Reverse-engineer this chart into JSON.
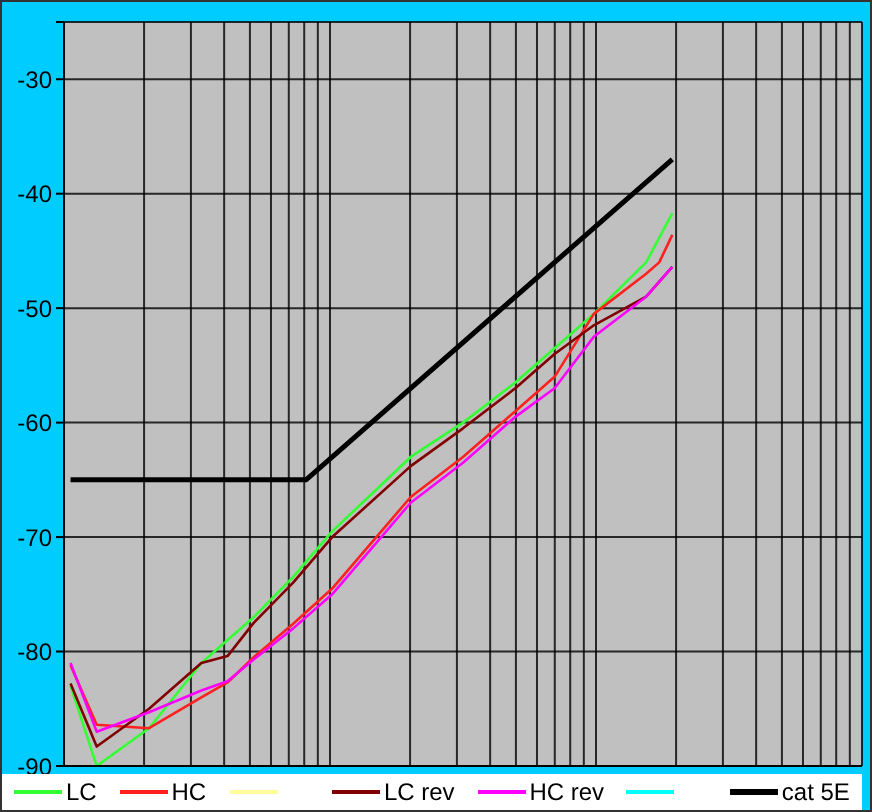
{
  "chart_data": {
    "type": "line",
    "grid": true,
    "legend": "bottom",
    "marker": "none",
    "line_style": "solid",
    "categories": [
      null,
      null,
      null,
      null,
      null,
      null,
      null,
      null,
      null,
      null,
      null,
      null,
      null,
      null,
      null,
      null,
      null,
      null,
      null,
      null,
      null,
      null,
      null,
      null,
      null,
      null,
      null,
      null,
      null,
      null,
      null,
      null,
      null,
      null,
      null,
      null,
      null,
      null,
      null,
      null,
      null,
      null,
      null,
      null,
      null,
      null,
      null,
      null,
      null,
      null,
      null,
      null,
      null,
      null,
      null,
      null,
      null,
      null,
      null,
      null,
      null
    ],
    "ylim": [
      -90,
      -25
    ],
    "yticks": [
      -90,
      -80,
      -70,
      -60,
      -50,
      -40,
      -30,
      {
        "value": -25,
        "label": null
      }
    ],
    "series": [
      {
        "name": "LC",
        "color": "#33ff33",
        "values": [
          -83,
          null,
          -90,
          null,
          null,
          null,
          -86.7,
          null,
          null,
          null,
          -81,
          null,
          -79,
          null,
          -77,
          null,
          null,
          -73.5,
          null,
          null,
          -69.5,
          null,
          null,
          null,
          null,
          null,
          -63,
          null,
          null,
          null,
          -60,
          null,
          null,
          null,
          -56.5,
          null,
          null,
          -53.5,
          null,
          null,
          -50.5,
          null,
          null,
          null,
          -46,
          null,
          -41.7,
          null,
          null,
          null,
          null,
          null,
          null,
          null,
          null,
          null,
          null,
          null,
          null,
          null,
          null
        ]
      },
      {
        "name": "HC",
        "color": "#ff2020",
        "values": [
          -81.2,
          null,
          -86.4,
          null,
          null,
          null,
          -86.7,
          null,
          null,
          null,
          -84,
          null,
          -82.7,
          null,
          -80.5,
          null,
          null,
          -77.6,
          null,
          null,
          -74.5,
          null,
          null,
          null,
          null,
          null,
          -66.5,
          null,
          null,
          null,
          -63,
          null,
          null,
          null,
          -59,
          null,
          null,
          -56,
          null,
          null,
          -50.5,
          null,
          null,
          null,
          -47,
          -46,
          -43.6,
          null,
          null,
          null,
          null,
          null,
          null,
          null,
          null,
          null,
          null,
          null,
          null,
          null,
          null
        ]
      },
      {
        "color": "#ffff99",
        "values": [
          null,
          null,
          null,
          null,
          null,
          null,
          null,
          null,
          null,
          null,
          null,
          null,
          null,
          null,
          null,
          null,
          null,
          null,
          null,
          null,
          null,
          null,
          null,
          null,
          null,
          null,
          null,
          null,
          null,
          null,
          null,
          null,
          null,
          null,
          null,
          null,
          null,
          null,
          null,
          null,
          null,
          null,
          null,
          null,
          null,
          null,
          null,
          null,
          null,
          null,
          null,
          null,
          null,
          null,
          null,
          null,
          null,
          null,
          null,
          null,
          null
        ]
      },
      {
        "name": "LC rev",
        "color": "#800000",
        "values": [
          -82.8,
          null,
          -88.3,
          null,
          null,
          null,
          -85,
          null,
          null,
          null,
          -81,
          null,
          -80.4,
          null,
          -77.5,
          null,
          null,
          -74,
          null,
          null,
          -70,
          null,
          null,
          null,
          null,
          null,
          -63.8,
          null,
          null,
          null,
          -60.5,
          null,
          null,
          null,
          -57,
          null,
          null,
          -54,
          null,
          null,
          -51.5,
          null,
          null,
          null,
          -49,
          null,
          -46.4,
          null,
          null,
          null,
          null,
          null,
          null,
          null,
          null,
          null,
          null,
          null,
          null,
          null,
          null
        ]
      },
      {
        "name": "HC rev",
        "color": "#ff00ff",
        "values": [
          -81,
          null,
          -87,
          null,
          null,
          null,
          -85.3,
          null,
          null,
          null,
          -83.4,
          null,
          -82.6,
          null,
          -80.7,
          null,
          null,
          -78,
          null,
          null,
          -75,
          null,
          null,
          null,
          null,
          null,
          -67,
          null,
          null,
          null,
          -63.5,
          null,
          null,
          null,
          -59.5,
          null,
          null,
          -57,
          null,
          null,
          -52.5,
          null,
          null,
          null,
          -49,
          null,
          -46.4,
          null,
          null,
          null,
          null,
          null,
          null,
          null,
          null,
          null,
          null,
          null,
          null,
          null,
          null
        ]
      },
      {
        "color": "#00ffff",
        "values": [
          null,
          null,
          null,
          null,
          null,
          null,
          null,
          null,
          null,
          null,
          null,
          null,
          null,
          null,
          null,
          null,
          null,
          null,
          null,
          null,
          null,
          null,
          null,
          null,
          null,
          null,
          null,
          null,
          null,
          null,
          null,
          null,
          null,
          null,
          null,
          null,
          null,
          null,
          null,
          null,
          null,
          null,
          null,
          null,
          null,
          null,
          null,
          null,
          null,
          null,
          null,
          null,
          null,
          null,
          null,
          null,
          null,
          null,
          null,
          null,
          null
        ]
      },
      {
        "name": "cat 5E",
        "color": "#000000",
        "values": [
          -65,
          null,
          null,
          null,
          null,
          null,
          null,
          null,
          null,
          null,
          null,
          null,
          null,
          null,
          null,
          null,
          null,
          null,
          -65,
          null,
          null,
          null,
          null,
          null,
          null,
          null,
          null,
          null,
          null,
          null,
          null,
          null,
          null,
          null,
          null,
          null,
          null,
          null,
          null,
          null,
          null,
          null,
          null,
          null,
          null,
          null,
          -37,
          null,
          null,
          null,
          null,
          null,
          null,
          null,
          null,
          null,
          null,
          null,
          null,
          null,
          null
        ]
      }
    ]
  }
}
